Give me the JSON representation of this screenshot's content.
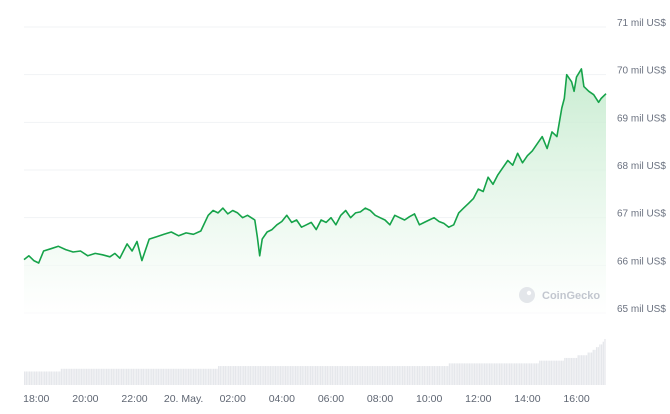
{
  "chart_data": {
    "type": "area",
    "watermark": "CoinGecko",
    "colors": {
      "line": "#16a34a",
      "fill_top": "#bfe9c9",
      "fill_bottom": "#ffffff",
      "volume": "#e5e7eb",
      "grid": "#f1f3f5"
    },
    "ylim": [
      64.6,
      71.2
    ],
    "y_ticks": [
      {
        "value": 71,
        "label": "71 mil US$"
      },
      {
        "value": 70,
        "label": "70 mil US$"
      },
      {
        "value": 69,
        "label": "69 mil US$"
      },
      {
        "value": 68,
        "label": "68 mil US$"
      },
      {
        "value": 67,
        "label": "67 mil US$"
      },
      {
        "value": 66,
        "label": "66 mil US$"
      },
      {
        "value": 65,
        "label": "65 mil US$"
      }
    ],
    "xlim": [
      17.5,
      41.2
    ],
    "x_ticks": [
      {
        "value": 18,
        "label": "18:00"
      },
      {
        "value": 20,
        "label": "20:00"
      },
      {
        "value": 22,
        "label": "22:00"
      },
      {
        "value": 24,
        "label": "20. May."
      },
      {
        "value": 26,
        "label": "02:00"
      },
      {
        "value": 28,
        "label": "04:00"
      },
      {
        "value": 30,
        "label": "06:00"
      },
      {
        "value": 32,
        "label": "08:00"
      },
      {
        "value": 34,
        "label": "10:00"
      },
      {
        "value": 36,
        "label": "12:00"
      },
      {
        "value": 38,
        "label": "14:00"
      },
      {
        "value": 40,
        "label": "16:00"
      }
    ],
    "series": [
      {
        "x": [
          17.5,
          17.7,
          17.9,
          18.1,
          18.3,
          18.6,
          18.9,
          19.2,
          19.5,
          19.8,
          20.1,
          20.4,
          20.7,
          21.0,
          21.2,
          21.4,
          21.7,
          21.9,
          22.1,
          22.3,
          22.6,
          22.9,
          23.2,
          23.5,
          23.8,
          24.1,
          24.4,
          24.7,
          25.0,
          25.2,
          25.4,
          25.6,
          25.8,
          26.0,
          26.2,
          26.4,
          26.6,
          26.9,
          27.0,
          27.1,
          27.2,
          27.4,
          27.6,
          27.8,
          28.0,
          28.2,
          28.4,
          28.6,
          28.8,
          29.0,
          29.2,
          29.4,
          29.6,
          29.8,
          30.0,
          30.2,
          30.4,
          30.6,
          30.8,
          31.0,
          31.2,
          31.4,
          31.6,
          31.8,
          32.0,
          32.2,
          32.4,
          32.6,
          32.8,
          33.0,
          33.2,
          33.4,
          33.6,
          33.8,
          34.0,
          34.2,
          34.4,
          34.6,
          34.8,
          35.0,
          35.2,
          35.4,
          35.6,
          35.8,
          36.0,
          36.2,
          36.4,
          36.6,
          36.8,
          37.0,
          37.2,
          37.4,
          37.6,
          37.8,
          38.0,
          38.2,
          38.4,
          38.6,
          38.8,
          39.0,
          39.2,
          39.4,
          39.5,
          39.6,
          39.8,
          39.9,
          40.0,
          40.2,
          40.3,
          40.5,
          40.7,
          40.9,
          41.0,
          41.2
        ],
        "y": [
          66.12,
          66.2,
          66.1,
          66.05,
          66.3,
          66.35,
          66.4,
          66.33,
          66.28,
          66.3,
          66.2,
          66.25,
          66.22,
          66.18,
          66.25,
          66.15,
          66.45,
          66.3,
          66.5,
          66.1,
          66.55,
          66.6,
          66.65,
          66.7,
          66.62,
          66.68,
          66.65,
          66.72,
          67.05,
          67.15,
          67.1,
          67.2,
          67.08,
          67.15,
          67.1,
          67.0,
          67.05,
          66.95,
          66.6,
          66.2,
          66.55,
          66.7,
          66.75,
          66.85,
          66.92,
          67.05,
          66.9,
          66.95,
          66.8,
          66.85,
          66.9,
          66.75,
          66.95,
          66.9,
          67.0,
          66.85,
          67.05,
          67.15,
          67.0,
          67.1,
          67.12,
          67.2,
          67.15,
          67.05,
          67.0,
          66.95,
          66.85,
          67.05,
          67.0,
          66.95,
          67.02,
          67.08,
          66.85,
          66.9,
          66.95,
          67.0,
          66.92,
          66.88,
          66.8,
          66.85,
          67.1,
          67.2,
          67.3,
          67.4,
          67.6,
          67.55,
          67.85,
          67.7,
          67.9,
          68.05,
          68.2,
          68.1,
          68.35,
          68.15,
          68.3,
          68.4,
          68.55,
          68.7,
          68.45,
          68.8,
          68.7,
          69.3,
          69.5,
          70.0,
          69.85,
          69.65,
          69.95,
          70.12,
          69.75,
          69.65,
          69.58,
          69.42,
          69.5,
          69.6
        ]
      }
    ],
    "volume": [
      5,
      5,
      5,
      5,
      5,
      5,
      5,
      5,
      5,
      5,
      5,
      5,
      5,
      5,
      5,
      5,
      5,
      5,
      5,
      5,
      5,
      5,
      6,
      6,
      6,
      6,
      6,
      6,
      6,
      6,
      6,
      6,
      6,
      6,
      6,
      6,
      6,
      6,
      6,
      6,
      6,
      6,
      6,
      6,
      6,
      6,
      6,
      6,
      6,
      6,
      6,
      6,
      6,
      6,
      6,
      6,
      6,
      6,
      6,
      6,
      6,
      6,
      6,
      6,
      6,
      6,
      6,
      6,
      6,
      6,
      6,
      6,
      6,
      6,
      6,
      6,
      6,
      6,
      6,
      6,
      6,
      6,
      6,
      6,
      6,
      6,
      6,
      6,
      6,
      6,
      6,
      6,
      6,
      6,
      6,
      6,
      6,
      6,
      6,
      6,
      6,
      6,
      6,
      6,
      6,
      6,
      6,
      6,
      6,
      6,
      6,
      6,
      6,
      6,
      6,
      6,
      7,
      7,
      7,
      7,
      7,
      7,
      7,
      7,
      7,
      7,
      7,
      7,
      7,
      7,
      7,
      7,
      7,
      7,
      7,
      7,
      7,
      7,
      7,
      7,
      7,
      7,
      7,
      7,
      7,
      7,
      7,
      7,
      7,
      7,
      7,
      7,
      7,
      7,
      7,
      7,
      7,
      7,
      7,
      7,
      7,
      7,
      7,
      7,
      7,
      7,
      7,
      7,
      7,
      7,
      7,
      7,
      7,
      7,
      7,
      7,
      7,
      7,
      7,
      7,
      7,
      7,
      7,
      7,
      7,
      7,
      7,
      7,
      7,
      7,
      7,
      7,
      7,
      7,
      7,
      7,
      7,
      7,
      7,
      7,
      7,
      7,
      7,
      7,
      7,
      7,
      7,
      7,
      7,
      7,
      7,
      7,
      7,
      7,
      7,
      7,
      7,
      7,
      7,
      7,
      7,
      7,
      7,
      7,
      7,
      7,
      7,
      7,
      7,
      7,
      7,
      7,
      7,
      7,
      7,
      7,
      7,
      7,
      7,
      7,
      7,
      7,
      7,
      7,
      7,
      7,
      7,
      7,
      7,
      7,
      7,
      7,
      7,
      7,
      8,
      8,
      8,
      8,
      8,
      8,
      8,
      8,
      8,
      8,
      8,
      8,
      8,
      8,
      8,
      8,
      8,
      8,
      8,
      8,
      8,
      8,
      8,
      8,
      8,
      8,
      8,
      8,
      8,
      8,
      8,
      8,
      8,
      8,
      8,
      8,
      8,
      8,
      8,
      8,
      8,
      8,
      8,
      8,
      8,
      8,
      8,
      8,
      8,
      8,
      8,
      8,
      8,
      8,
      9,
      9,
      9,
      9,
      9,
      9,
      9,
      9,
      9,
      9,
      9,
      9,
      9,
      9,
      9,
      10,
      10,
      10,
      10,
      10,
      10,
      10,
      10,
      11,
      11,
      11,
      11,
      11,
      11,
      12,
      12,
      12,
      13,
      13,
      14,
      14,
      15,
      15,
      16,
      17
    ]
  }
}
